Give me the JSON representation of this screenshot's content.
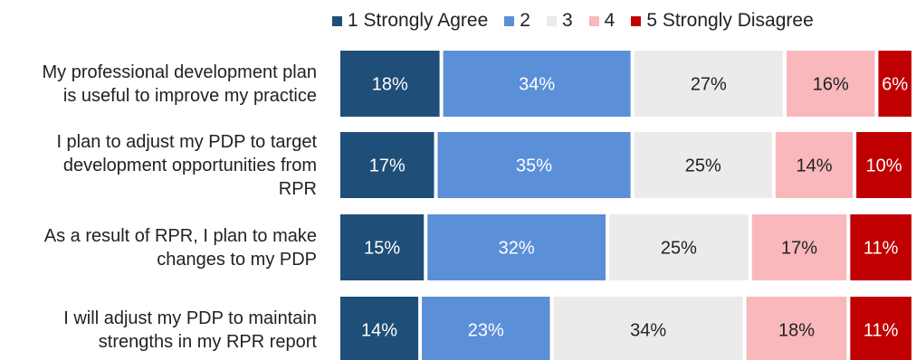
{
  "chart_data": {
    "type": "bar",
    "orientation": "horizontal",
    "stacked": "100%",
    "categories": [
      "My professional development plan is useful to improve my practice",
      "I plan to adjust my PDP to target development opportunities from RPR",
      "As a result of RPR, I plan to make changes to my PDP",
      "I will adjust my PDP to maintain strengths in my RPR report"
    ],
    "category_lines": [
      [
        "My professional development plan",
        "is useful to improve my practice"
      ],
      [
        "I plan to adjust my PDP to target",
        "development opportunities from",
        "RPR"
      ],
      [
        "As a result of RPR, I plan to make",
        "changes to my PDP"
      ],
      [
        "I will adjust my PDP to maintain",
        "strengths in my RPR report"
      ]
    ],
    "series": [
      {
        "name": "1 Strongly Agree",
        "color": "#1f4e79",
        "label_color": "#ffffff",
        "values": [
          18,
          17,
          15,
          14
        ],
        "labels": [
          "18%",
          "17%",
          "15%",
          "14%"
        ]
      },
      {
        "name": "2",
        "color": "#5b8fd8",
        "label_color": "#ffffff",
        "values": [
          34,
          35,
          32,
          23
        ],
        "labels": [
          "34%",
          "35%",
          "32%",
          "23%"
        ]
      },
      {
        "name": "3",
        "color": "#ebebeb",
        "label_color": "#222222",
        "values": [
          27,
          25,
          25,
          34
        ],
        "labels": [
          "27%",
          "25%",
          "25%",
          "34%"
        ]
      },
      {
        "name": "4",
        "color": "#f8b8bc",
        "label_color": "#222222",
        "values": [
          16,
          14,
          17,
          18
        ],
        "labels": [
          "16%",
          "14%",
          "17%",
          "18%"
        ]
      },
      {
        "name": "5 Strongly Disagree",
        "color": "#c00000",
        "label_color": "#ffffff",
        "values": [
          6,
          10,
          11,
          11
        ],
        "labels": [
          "6%",
          "10%",
          "11%",
          "11%"
        ]
      }
    ],
    "legend_position": "top",
    "grid": false,
    "xlim": [
      0,
      100
    ]
  }
}
